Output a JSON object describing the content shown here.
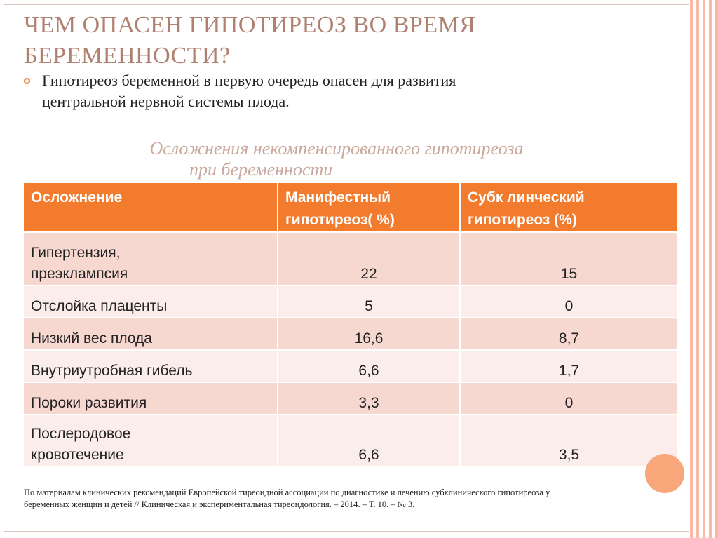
{
  "title": {
    "line1": "Чем опасен гипотиреоз во время",
    "line2": "беременности?"
  },
  "bullet": {
    "text_line1": "Гипотиреоз беременной  в первую очередь опасен для развития",
    "text_line2": "центральной нервной системы  плода."
  },
  "table_title": {
    "line1": "Осложнения некомпенсированного   гипотиреоза",
    "line2": "при беременности"
  },
  "table": {
    "headers": [
      {
        "line1": "Осложнение",
        "line2": ""
      },
      {
        "line1": "Манифестный",
        "line2": "гипотиреоз( %)"
      },
      {
        "line1": "Субк линческий",
        "line2": "гипотиреоз (%)"
      }
    ],
    "rows": [
      {
        "complication_line1": "Гипертензия,",
        "complication_line2": "преэклампсия",
        "manifest": "22",
        "subclinical": "15"
      },
      {
        "complication_line1": "Отслойка плаценты",
        "complication_line2": "",
        "manifest": "5",
        "subclinical": "0"
      },
      {
        "complication_line1": "Низкий вес плода",
        "complication_line2": "",
        "manifest": "16,6",
        "subclinical": "8,7"
      },
      {
        "complication_line1": "Внутриутробная гибель",
        "complication_line2": "",
        "manifest": "6,6",
        "subclinical": "1,7"
      },
      {
        "complication_line1": "Пороки развития",
        "complication_line2": "",
        "manifest": "3,3",
        "subclinical": "0"
      },
      {
        "complication_line1": "Послеродовое",
        "complication_line2": "кровотечение",
        "manifest": "6,6",
        "subclinical": "3,5"
      }
    ]
  },
  "footnote": {
    "line1": "По материалам клинических рекомендаций Европейской тиреоидной ассоциации по диагностике и лечению субклинического гипотиреоза у",
    "line2": "беременных женщин и детей // Клиническая и экспериментальная тиреоидология. – 2014. – Т. 10. – № 3."
  },
  "colors": {
    "accent": "#f27b2e",
    "title": "#b08171",
    "row_odd": "#f7d8d1",
    "row_even": "#fbeeea"
  }
}
